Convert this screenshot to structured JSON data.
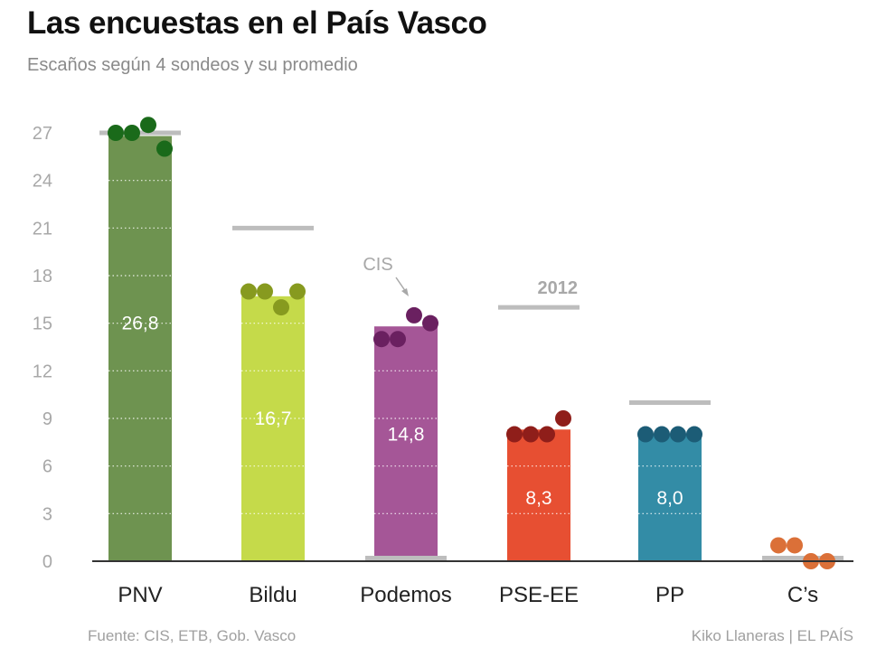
{
  "title": "Las encuestas en el País Vasco",
  "subtitle": "Escaños según 4 sondeos y su promedio",
  "footer": {
    "source": "Fuente: CIS, ETB, Gob. Vasco",
    "credit": "Kiko Llaneras  |  EL PAÍS"
  },
  "chart_data": {
    "type": "bar",
    "ylim": [
      0,
      27
    ],
    "yticks": [
      0,
      3,
      6,
      9,
      12,
      15,
      18,
      21,
      24,
      27
    ],
    "categories": [
      "PNV",
      "Bildu",
      "Podemos",
      "PSE-EE",
      "PP",
      "C’s"
    ],
    "value_labels": [
      "26,8",
      "16,7",
      "14,8",
      "8,3",
      "8,0",
      ""
    ],
    "series": [
      {
        "values": [
          26.8,
          16.7,
          14.8,
          8.3,
          8.0,
          0.3
        ]
      }
    ],
    "polls": [
      [
        27,
        27,
        27.5,
        26
      ],
      [
        17,
        17,
        16,
        17
      ],
      [
        14,
        14,
        15.5,
        15
      ],
      [
        8,
        8,
        8,
        9
      ],
      [
        8,
        8,
        8,
        8
      ],
      [
        1,
        1,
        0,
        0
      ]
    ],
    "results_2012": [
      27,
      21,
      0.2,
      16,
      10,
      0.2
    ],
    "colors": [
      "#6e9350",
      "#c5da4a",
      "#a55697",
      "#e74f32",
      "#338ca6",
      "#e2834c"
    ],
    "dot_colors": [
      "#1a6a1a",
      "#879a1f",
      "#6a2060",
      "#8f1e1a",
      "#1c5c76",
      "#db7038"
    ],
    "annotations": [
      {
        "text": "2012",
        "category": "PSE-EE"
      },
      {
        "text": "CIS",
        "category": "Podemos"
      }
    ],
    "grid": true
  }
}
